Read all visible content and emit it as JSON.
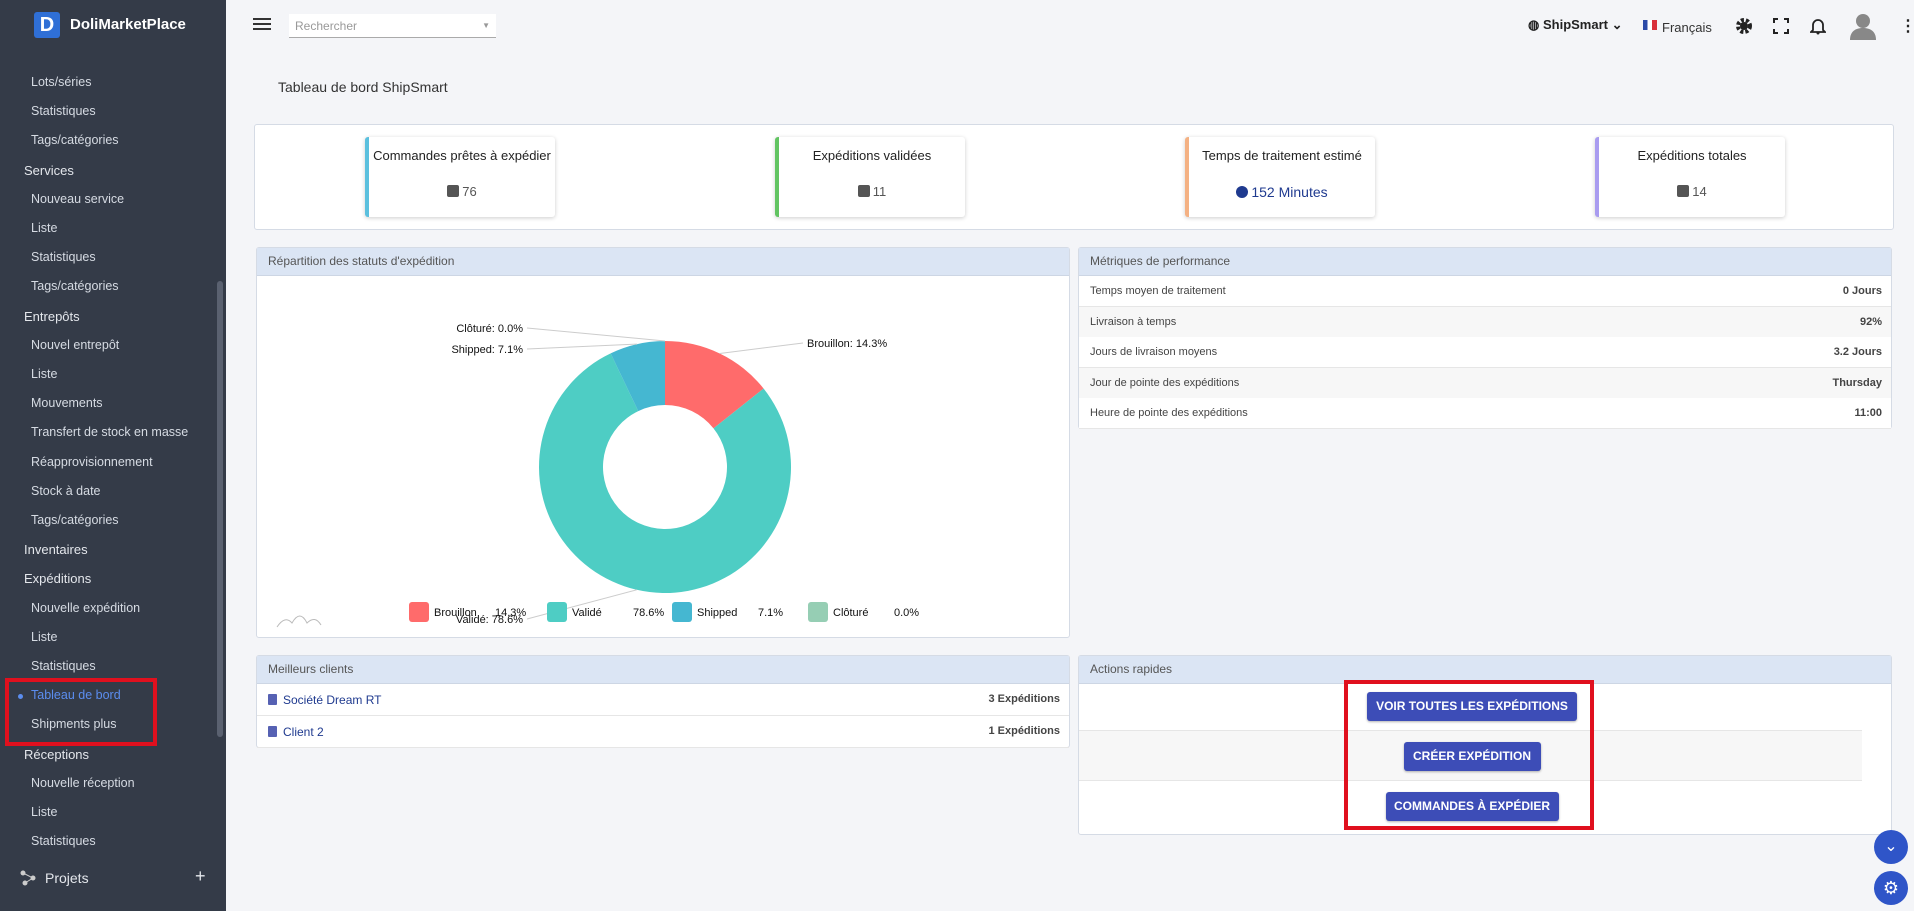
{
  "sidebar": {
    "brand": "DoliMarketPlace",
    "sections": [
      {
        "items": [
          "Lots/séries",
          "Statistiques",
          "Tags/catégories"
        ]
      },
      {
        "title": "Services",
        "items": [
          "Nouveau service",
          "Liste",
          "Statistiques",
          "Tags/catégories"
        ]
      },
      {
        "title": "Entrepôts",
        "items": [
          "Nouvel entrepôt",
          "Liste",
          "Mouvements",
          "Transfert de stock en masse",
          "Réapprovisionnement",
          "Stock à date",
          "Tags/catégories"
        ]
      },
      {
        "title": "Inventaires",
        "items": []
      },
      {
        "title": "Expéditions",
        "items": [
          "Nouvelle expédition",
          "Liste",
          "Statistiques",
          "Tableau de bord",
          "Shipments plus"
        ]
      },
      {
        "title": "Réceptions",
        "items": [
          "Nouvelle réception",
          "Liste",
          "Statistiques"
        ]
      }
    ],
    "footer": "Projets"
  },
  "topbar": {
    "search_placeholder": "Rechercher",
    "entity": "ShipSmart",
    "language": "Français"
  },
  "page": {
    "title": "Tableau de bord ShipSmart"
  },
  "kpis": [
    {
      "label": "Commandes prêtes à expédier",
      "value": 76
    },
    {
      "label": "Expéditions validées",
      "value": 11
    },
    {
      "label": "Temps de traitement estimé",
      "value": "152 Minutes"
    },
    {
      "label": "Expéditions totales",
      "value": 14
    }
  ],
  "chart_data": {
    "type": "donut",
    "title": "Répartition des statuts d'expédition",
    "categories": [
      "Brouillon",
      "Validé",
      "Shipped",
      "Clôturé"
    ],
    "values": [
      14.3,
      78.6,
      7.1,
      0.0
    ],
    "value_labels": [
      "14.3%",
      "78.6%",
      "7.1%",
      "0.0%"
    ],
    "callouts": [
      "Brouillon: 14.3%",
      "Validé: 78.6%",
      "Shipped: 7.1%",
      "Clôturé: 0.0%"
    ],
    "colors": [
      "#ff6b6b",
      "#4ecdc4",
      "#45b7d1",
      "#96ceb4"
    ]
  },
  "metrics": {
    "title": "Métriques de performance",
    "rows": [
      [
        "Temps moyen de traitement",
        "0 Jours"
      ],
      [
        "Livraison à temps",
        "92%"
      ],
      [
        "Jours de livraison moyens",
        "3.2 Jours"
      ],
      [
        "Jour de pointe des expéditions",
        "Thursday"
      ],
      [
        "Heure de pointe des expéditions",
        "11:00"
      ]
    ]
  },
  "clients": {
    "title": "Meilleurs clients",
    "rows": [
      [
        "Société Dream RT",
        "3 Expéditions"
      ],
      [
        "Client 2",
        "1 Expéditions"
      ]
    ]
  },
  "actions": {
    "title": "Actions rapides",
    "buttons": [
      "VOIR TOUTES LES EXPÉDITIONS",
      "CRÉER EXPÉDITION",
      "COMMANDES À EXPÉDIER"
    ]
  }
}
